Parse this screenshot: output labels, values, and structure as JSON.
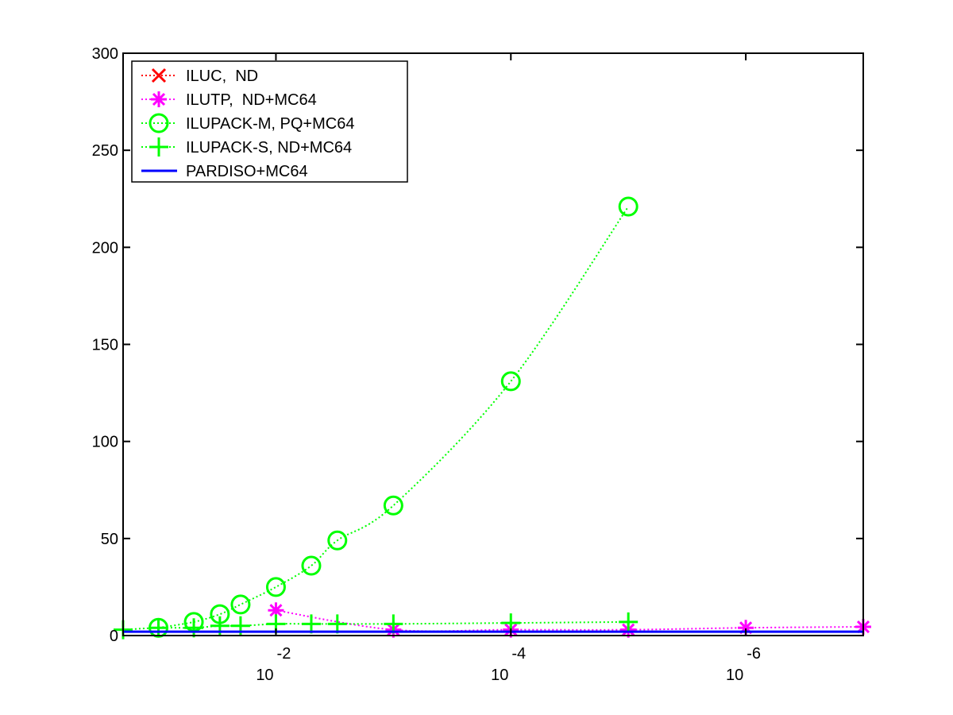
{
  "chart_data": {
    "type": "line",
    "title": "",
    "xlabel": "",
    "ylabel": "",
    "x_scale": "log",
    "x_reversed": true,
    "xlim": [
      0.2,
      1e-07
    ],
    "ylim": [
      0,
      300
    ],
    "y_ticks": [
      0,
      50,
      100,
      150,
      200,
      250,
      300
    ],
    "x_ticks": [
      {
        "value": 0.01,
        "base": "10",
        "exponent": "-2"
      },
      {
        "value": 0.0001,
        "base": "10",
        "exponent": "-4"
      },
      {
        "value": 1e-06,
        "base": "10",
        "exponent": "-6"
      }
    ],
    "grid": false,
    "legend_position": "top-left",
    "series": [
      {
        "name": "ILUC,  ND",
        "color": "#ff0000",
        "marker": "x",
        "line": "dotted",
        "x": [],
        "values": []
      },
      {
        "name": "ILUTP,  ND+MC64",
        "color": "#ff00ff",
        "marker": "star",
        "line": "dotted",
        "x": [
          0.01,
          0.001,
          0.0001,
          1e-05,
          1e-06,
          1e-07
        ],
        "values": [
          13,
          3,
          3,
          3,
          4,
          4.5
        ]
      },
      {
        "name": "ILUPACK-M, PQ+MC64",
        "color": "#00ff00",
        "marker": "circle",
        "line": "dotted",
        "x": [
          0.1,
          0.05,
          0.03,
          0.02,
          0.01,
          0.005,
          0.003,
          0.001,
          0.0001,
          1e-05
        ],
        "values": [
          4,
          7,
          11,
          16,
          25,
          36,
          49,
          67,
          131,
          221
        ]
      },
      {
        "name": "ILUPACK-S, ND+MC64",
        "color": "#00ff00",
        "marker": "plus",
        "line": "dotted",
        "x": [
          0.2,
          0.1,
          0.05,
          0.03,
          0.02,
          0.01,
          0.005,
          0.003,
          0.001,
          0.0001,
          1e-05
        ],
        "values": [
          3,
          4,
          4,
          5,
          5,
          6,
          6,
          6,
          6,
          6.5,
          7
        ]
      },
      {
        "name": "PARDISO+MC64",
        "color": "#0000ff",
        "marker": "none",
        "line": "solid",
        "x": [
          0.2,
          1e-07
        ],
        "values": [
          2,
          2
        ]
      }
    ]
  }
}
